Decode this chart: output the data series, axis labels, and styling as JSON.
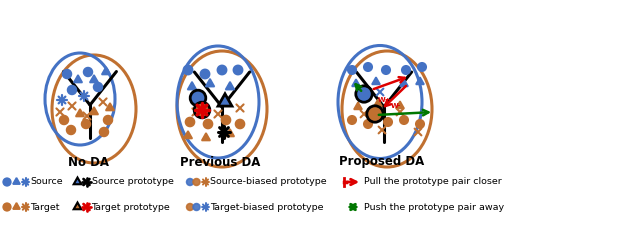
{
  "figsize": [
    6.26,
    2.42
  ],
  "dpi": 100,
  "bg_color": "#ffffff",
  "source_color": "#4472C4",
  "target_color": "#C07030",
  "black_color": "#000000",
  "red_color": "#DD0000",
  "green_color": "#007700",
  "panel_titles": [
    "No DA",
    "Previous DA",
    "Proposed DA"
  ]
}
